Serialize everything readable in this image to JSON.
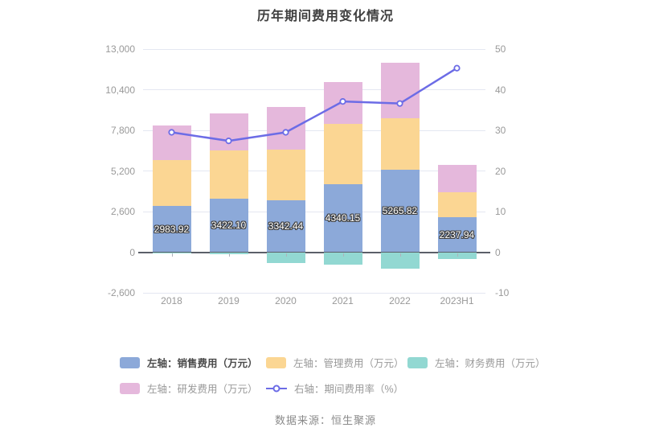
{
  "title": "历年期间费用变化情况",
  "source_note": "数据来源：恒生聚源",
  "chart_data": {
    "type": "bar",
    "stacked": true,
    "title": "历年期间费用变化情况",
    "categories": [
      "2018",
      "2019",
      "2020",
      "2021",
      "2022",
      "2023H1"
    ],
    "series": [
      {
        "name": "左轴：销售费用（万元）",
        "type": "bar",
        "axis": "left",
        "color": "#8CA9D9",
        "values": [
          2983.92,
          3422.1,
          3342.44,
          4340.15,
          5265.82,
          2237.94
        ],
        "data_labels": [
          "2983.92",
          "3422.10",
          "3342.44",
          "4340.15",
          "5265.82",
          "2237.94"
        ]
      },
      {
        "name": "左轴：管理费用（万元）",
        "type": "bar",
        "axis": "left",
        "color": "#FBD693",
        "values": [
          2890,
          3110,
          3200,
          3850,
          3320,
          1620
        ]
      },
      {
        "name": "左轴：财务费用（万元）",
        "type": "bar",
        "axis": "left",
        "color": "#92D8D2",
        "values": [
          -50,
          -150,
          -720,
          -820,
          -1030,
          -440
        ]
      },
      {
        "name": "左轴：研发费用（万元）",
        "type": "bar",
        "axis": "left",
        "color": "#E5B8DC",
        "values": [
          2250,
          2370,
          2730,
          2710,
          3550,
          1720
        ]
      }
    ],
    "line_series": {
      "name": "右轴：期间费用率（%）",
      "type": "line",
      "axis": "right",
      "color": "#6C6CE6",
      "values": [
        29.5,
        27.4,
        29.5,
        37.1,
        36.6,
        45.3
      ]
    },
    "left_axis": {
      "min": -2600,
      "max": 13000,
      "interval": 2600,
      "tick_labels": [
        "13,000",
        "10,400",
        "7,800",
        "5,200",
        "2,600",
        "0",
        "-2,600"
      ]
    },
    "right_axis": {
      "min": -10,
      "max": 50,
      "interval": 10,
      "tick_labels": [
        "50",
        "40",
        "30",
        "20",
        "10",
        "0",
        "-10"
      ]
    },
    "grid": true,
    "legend_position": "bottom"
  }
}
